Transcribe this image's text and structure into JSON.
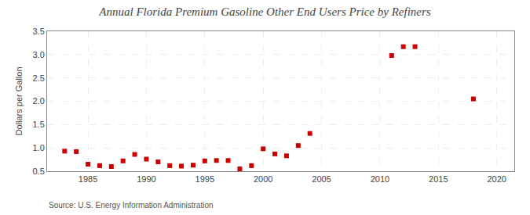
{
  "chart_data": {
    "type": "scatter",
    "title": "Annual Florida Premium Gasoline Other End Users Price by Refiners",
    "ylabel": "Dollars per Gallon",
    "annotations": [
      "Source: U.S. Energy Information Administration"
    ],
    "x": [
      1983,
      1984,
      1985,
      1986,
      1987,
      1988,
      1989,
      1990,
      1991,
      1992,
      1993,
      1994,
      1995,
      1996,
      1997,
      1998,
      1999,
      2000,
      2001,
      2002,
      2003,
      2004,
      2011,
      2012,
      2013,
      2018
    ],
    "values": [
      0.93,
      0.92,
      0.65,
      0.62,
      0.6,
      0.72,
      0.86,
      0.76,
      0.7,
      0.62,
      0.61,
      0.63,
      0.72,
      0.73,
      0.73,
      0.55,
      0.62,
      0.98,
      0.87,
      0.83,
      1.05,
      1.31,
      2.98,
      3.17,
      3.17,
      2.05
    ],
    "color": "#cc0000",
    "marker": "square",
    "xlim": [
      1981.5,
      2021.5
    ],
    "ylim": [
      0.5,
      3.5
    ],
    "xticks": [
      1985,
      1990,
      1995,
      2000,
      2005,
      2010,
      2015,
      2020
    ],
    "yticks": [
      0.5,
      {
        "value": 1.0,
        "label": "1.0"
      },
      1.5,
      {
        "value": 2.0,
        "label": "2.0"
      },
      2.5,
      {
        "value": 3.0,
        "label": "3.0"
      },
      3.5
    ],
    "grid": true
  }
}
